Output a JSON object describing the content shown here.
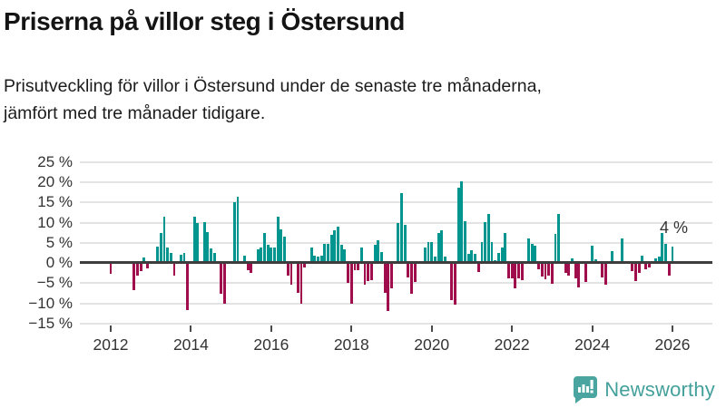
{
  "header": {
    "title": "Priserna på villor steg i Östersund",
    "subtitle_lines": [
      "Prisutveckling för villor i Östersund under de senaste tre månaderna,",
      "jämfört med tre månader tidigare."
    ]
  },
  "chart_data": {
    "type": "bar",
    "title": "Priserna på villor steg i Östersund",
    "xlabel": "",
    "ylabel": "%",
    "ylim": [
      -15,
      25
    ],
    "grid": true,
    "x_start": "2012-01",
    "x_interval": "month",
    "x_tick_labels": [
      "2012",
      "2014",
      "2016",
      "2018",
      "2020",
      "2022",
      "2024",
      "2026"
    ],
    "y_tick_values": [
      25,
      20,
      15,
      10,
      5,
      0,
      -5,
      -10,
      -15
    ],
    "y_tick_labels": [
      "25 %",
      "20 %",
      "15 %",
      "10 %",
      "5 %",
      "0 %",
      "−5 %",
      "−10 %",
      "−15 %"
    ],
    "annotation": {
      "text": "4 %",
      "month_index": 168
    },
    "colors": {
      "positive": "#00968f",
      "negative": "#a00d4d",
      "axis": "#3d3d3d",
      "grid": "#e3e3e3"
    },
    "values": [
      -2.5,
      0,
      0,
      0,
      0,
      0,
      0,
      -6.6,
      -3.0,
      -1.9,
      1.3,
      -1.1,
      0,
      0,
      4.1,
      7.5,
      11.5,
      3.8,
      2.5,
      -3.0,
      0,
      2.0,
      2.5,
      -11.5,
      0,
      11.4,
      9.9,
      0,
      10.2,
      7.7,
      3.6,
      2.5,
      0,
      -7.5,
      -9.9,
      0,
      0,
      15.0,
      16.5,
      0,
      1.8,
      -1.5,
      -2.3,
      0,
      3.4,
      3.8,
      7.5,
      4.5,
      3.8,
      3.8,
      11.5,
      8.4,
      6.6,
      -3.0,
      -5.2,
      0,
      -7.3,
      -9.8,
      -1.0,
      0,
      3.8,
      1.9,
      1.6,
      1.9,
      4.8,
      4.8,
      7.0,
      8.0,
      9.1,
      4.5,
      3.4,
      -4.8,
      -9.8,
      -1.6,
      -1.6,
      3.8,
      -5.2,
      -4.3,
      -4.0,
      4.5,
      5.7,
      2.7,
      -7.3,
      -11.6,
      -6.1,
      0,
      10.0,
      17.3,
      9.5,
      -3.3,
      -7.4,
      -4.5,
      0,
      0,
      3.8,
      5.2,
      5.2,
      1.6,
      7.5,
      8.2,
      1.6,
      0,
      -8.9,
      -10.2,
      18.6,
      20.2,
      10.3,
      2.3,
      3.2,
      2.3,
      -2.0,
      5.2,
      10.2,
      12.2,
      5.2,
      0.7,
      2.4,
      3.8,
      7.4,
      -3.6,
      -3.6,
      -6.1,
      -3.6,
      -4.1,
      0,
      6.1,
      4.8,
      4.3,
      -1.4,
      -3.2,
      -3.9,
      -3.0,
      -5.0,
      7.3,
      12.2,
      0,
      -2.3,
      -3.0,
      1.1,
      -3.6,
      -5.9,
      0,
      -4.5,
      0,
      4.3,
      0.9,
      0,
      -3.4,
      -5.2,
      0,
      2.9,
      0,
      0,
      6.1,
      0,
      0,
      -1.8,
      -4.2,
      -2.3,
      1.8,
      -1.4,
      -0.9,
      0,
      1.1,
      1.5,
      7.4,
      4.8,
      -2.9,
      4.0
    ]
  },
  "branding": {
    "logo_text": "Newsworthy",
    "logo_color": "#4aa5a0"
  }
}
